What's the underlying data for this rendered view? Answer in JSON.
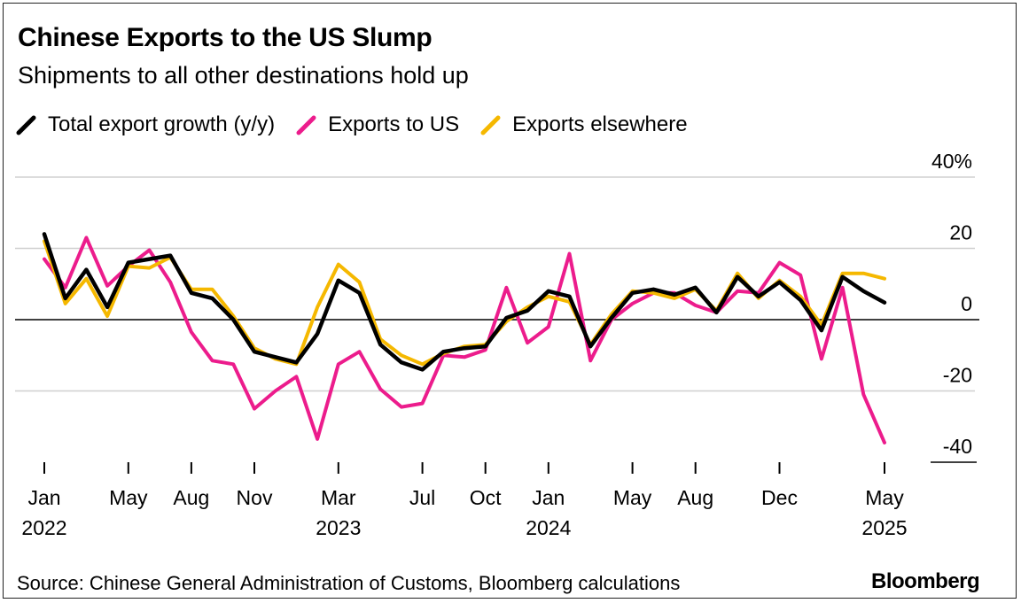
{
  "title": "Chinese Exports to the US Slump",
  "subtitle": "Shipments to all other destinations hold up",
  "legend": [
    {
      "label": "Total export growth (y/y)",
      "color": "#000000"
    },
    {
      "label": "Exports to US",
      "color": "#ec1c8c"
    },
    {
      "label": "Exports elsewhere",
      "color": "#f5b800"
    }
  ],
  "source": "Source: Chinese General Administration of Customs, Bloomberg calculations",
  "brand": "Bloomberg",
  "chart_data": {
    "type": "line",
    "title": "Chinese Exports to the US Slump",
    "ylabel": "",
    "xlabel": "",
    "ylim": [
      -40,
      40
    ],
    "y_ticks": [
      {
        "value": 40,
        "label": "40%"
      },
      {
        "value": 20,
        "label": "20"
      },
      {
        "value": 0,
        "label": "0"
      },
      {
        "value": -20,
        "label": "-20"
      },
      {
        "value": -40,
        "label": "-40"
      }
    ],
    "x_ticks": [
      {
        "index": 0,
        "month": "Jan",
        "year": "2022"
      },
      {
        "index": 4,
        "month": "May",
        "year": ""
      },
      {
        "index": 7,
        "month": "Aug",
        "year": ""
      },
      {
        "index": 10,
        "month": "Nov",
        "year": ""
      },
      {
        "index": 14,
        "month": "Mar",
        "year": "2023"
      },
      {
        "index": 18,
        "month": "Jul",
        "year": ""
      },
      {
        "index": 21,
        "month": "Oct",
        "year": ""
      },
      {
        "index": 24,
        "month": "Jan",
        "year": "2024"
      },
      {
        "index": 28,
        "month": "May",
        "year": ""
      },
      {
        "index": 31,
        "month": "Aug",
        "year": ""
      },
      {
        "index": 35,
        "month": "Dec",
        "year": ""
      },
      {
        "index": 40,
        "month": "May",
        "year": "2025"
      }
    ],
    "series": [
      {
        "name": "Total export growth (y/y)",
        "color": "#000000",
        "values": [
          24,
          6,
          14,
          3.5,
          16,
          17,
          18,
          7.5,
          6,
          0,
          -9,
          -10.5,
          -12,
          -4,
          11,
          7.5,
          -7,
          -12,
          -14,
          -9,
          -8,
          -7.5,
          0.5,
          2.5,
          8,
          6.5,
          -7.5,
          0.5,
          7.5,
          8.5,
          7,
          9,
          2,
          12,
          6.5,
          10.5,
          5.5,
          -3,
          12,
          8,
          4.8
        ]
      },
      {
        "name": "Exports to US",
        "color": "#ec1c8c",
        "values": [
          17,
          9,
          23,
          9.5,
          15,
          19.5,
          10.5,
          -3.5,
          -11.5,
          -12.5,
          -25,
          -20,
          -16,
          -33.5,
          -12.5,
          -9,
          -19.5,
          -24.5,
          -23.5,
          -10,
          -10.5,
          -8.5,
          9,
          -6.5,
          -2,
          18.5,
          -11.5,
          0,
          4.5,
          7.5,
          7.5,
          4,
          2,
          8,
          7.5,
          16,
          12.5,
          -11,
          9,
          -21,
          -34.5
        ]
      },
      {
        "name": "Exports elsewhere",
        "color": "#f5b800",
        "values": [
          22,
          4.5,
          11.5,
          1,
          15,
          14.5,
          17.5,
          8.5,
          8.5,
          1,
          -8,
          -11,
          -12.5,
          3.5,
          15.5,
          10.5,
          -5.5,
          -10,
          -12.5,
          -9.5,
          -7.5,
          -7,
          -0.5,
          3.5,
          6.5,
          5,
          -7,
          1.5,
          8,
          7.5,
          6,
          8.5,
          2.5,
          13,
          6,
          11,
          6.5,
          -1.5,
          13,
          13,
          11.5
        ]
      }
    ]
  }
}
